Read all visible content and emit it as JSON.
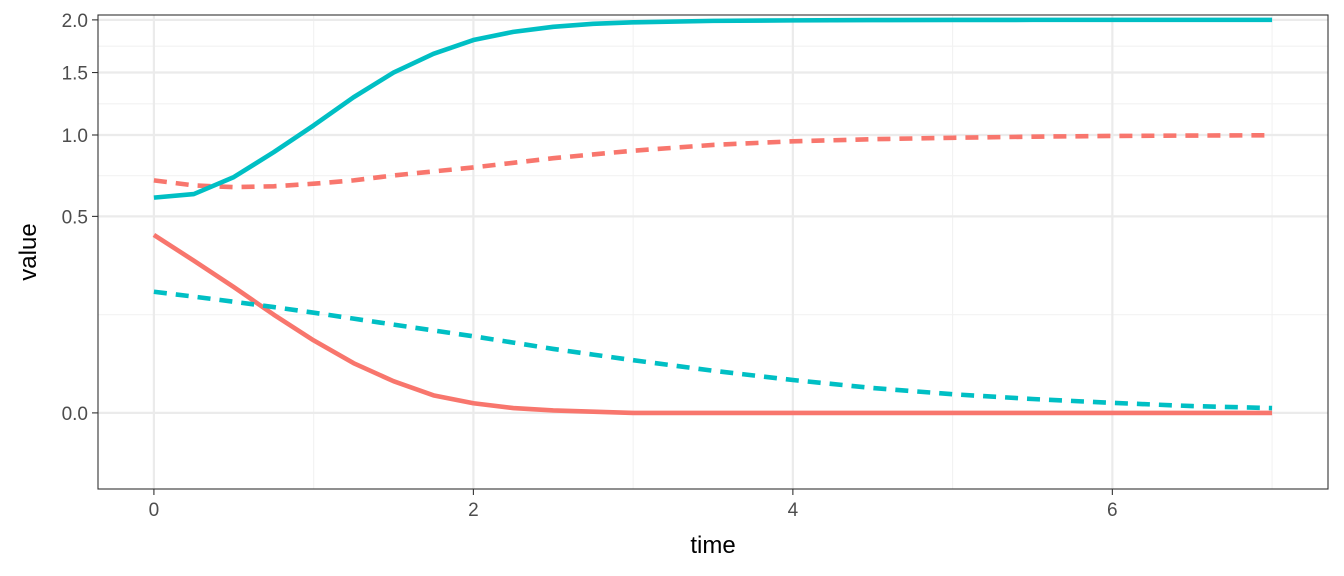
{
  "chart_data": {
    "type": "line",
    "title": "",
    "xlabel": "time",
    "ylabel": "value",
    "xlim": [
      -0.35,
      7.35
    ],
    "ylim": [
      -0.075,
      2.05
    ],
    "y_scale": "sqrt",
    "x_ticks": [
      0,
      2,
      4,
      6
    ],
    "x_tick_labels": [
      "0",
      "2",
      "4",
      "6"
    ],
    "x_minor_ticks": [
      1,
      3,
      5,
      7
    ],
    "y_ticks": [
      0.0,
      0.5,
      1.0,
      1.5,
      2.0
    ],
    "y_tick_labels": [
      "0.0",
      "0.5",
      "1.0",
      "1.5",
      "2.0"
    ],
    "grid": true,
    "legend": "none",
    "x": [
      0,
      0.25,
      0.5,
      0.75,
      1,
      1.25,
      1.5,
      1.75,
      2,
      2.25,
      2.5,
      2.75,
      3,
      3.5,
      4,
      4.5,
      5,
      5.5,
      6,
      6.5,
      7
    ],
    "series": [
      {
        "color": "#F8766D",
        "linestyle": "dashed",
        "values": [
          0.7,
          0.67,
          0.66,
          0.665,
          0.68,
          0.7,
          0.73,
          0.755,
          0.78,
          0.81,
          0.84,
          0.865,
          0.89,
          0.93,
          0.955,
          0.97,
          0.98,
          0.988,
          0.993,
          0.996,
          0.998
        ]
      },
      {
        "color": "#00BFC4",
        "linestyle": "solid",
        "values": [
          0.6,
          0.62,
          0.72,
          0.88,
          1.07,
          1.29,
          1.5,
          1.67,
          1.8,
          1.88,
          1.93,
          1.96,
          1.975,
          1.99,
          1.995,
          1.998,
          1.999,
          2.0,
          2.0,
          2.0,
          2.0
        ]
      },
      {
        "color": "#F8766D",
        "linestyle": "solid",
        "values": [
          0.41,
          0.3,
          0.205,
          0.125,
          0.068,
          0.032,
          0.013,
          0.004,
          0.0012,
          0.0003,
          8e-05,
          2e-05,
          0.0,
          0.0,
          0.0,
          0.0,
          0.0,
          0.0,
          0.0,
          0.0,
          0.0
        ]
      },
      {
        "color": "#00BFC4",
        "linestyle": "dashed",
        "values": [
          0.19,
          0.175,
          0.16,
          0.145,
          0.13,
          0.115,
          0.101,
          0.088,
          0.076,
          0.064,
          0.053,
          0.044,
          0.036,
          0.023,
          0.014,
          0.008,
          0.0045,
          0.0025,
          0.0013,
          0.0006,
          0.0003
        ]
      }
    ]
  }
}
